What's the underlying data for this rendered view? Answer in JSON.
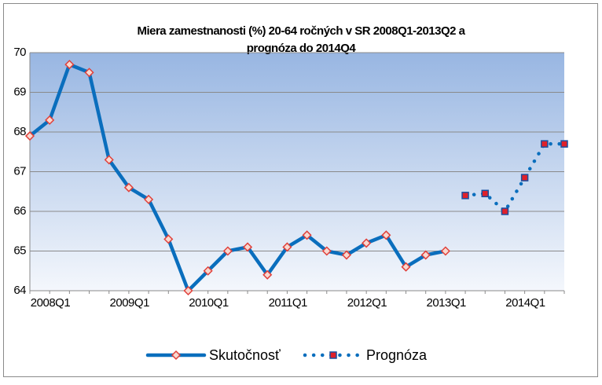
{
  "chart_data": {
    "type": "line",
    "title": [
      "Miera zamestnanosti (%) 20-64 ročných v SR 2008Q1-2013Q2 a",
      "prognóza do 2014Q4"
    ],
    "categories": [
      "2008Q1",
      null,
      null,
      null,
      "2009Q1",
      null,
      null,
      null,
      "2010Q1",
      null,
      null,
      null,
      "2011Q1",
      null,
      null,
      null,
      "2012Q1",
      null,
      null,
      null,
      "2013Q1",
      null,
      null,
      null,
      "2014Q1",
      null,
      null,
      null
    ],
    "series": [
      {
        "name": "Skutočnosť",
        "color": "#0a6ebd",
        "marker_color": "#e0403a",
        "values": [
          67.9,
          68.3,
          69.7,
          69.5,
          67.3,
          66.6,
          66.3,
          65.3,
          64.0,
          64.5,
          65.0,
          65.1,
          64.4,
          65.1,
          65.4,
          65.0,
          64.9,
          65.2,
          65.4,
          64.6,
          64.9,
          65.0,
          null,
          null,
          null,
          null,
          null,
          null
        ]
      },
      {
        "name": "Prognóza",
        "color": "#0a6ebd",
        "marker_color": "#e0202a",
        "dotted": true,
        "values": [
          null,
          null,
          null,
          null,
          null,
          null,
          null,
          null,
          null,
          null,
          null,
          null,
          null,
          null,
          null,
          null,
          null,
          null,
          null,
          null,
          null,
          null,
          66.4,
          66.45,
          66.0,
          66.85,
          67.7,
          67.7
        ]
      }
    ],
    "ylim": [
      64,
      70
    ],
    "yticks": [
      64,
      65,
      66,
      67,
      68,
      69,
      70
    ],
    "grid": true
  }
}
